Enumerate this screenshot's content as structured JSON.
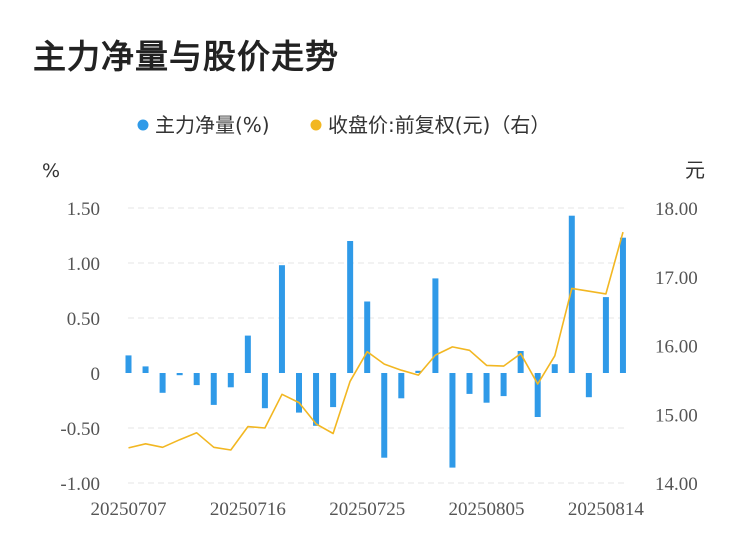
{
  "title": "主力净量与股价走势",
  "colors": {
    "bar": "#2f9ae8",
    "line": "#f2b722",
    "text": "#333333",
    "tick": "#555555",
    "grid": "#e6e6e6"
  },
  "chart_data": {
    "type": "bar+line",
    "legend": [
      {
        "name": "主力净量(%)",
        "icon": "dot",
        "color": "#2f9ae8"
      },
      {
        "name": "收盘价:前复权(元)（右）",
        "icon": "dot",
        "color": "#f2b722"
      }
    ],
    "left_axis": {
      "unit": "%",
      "ticks": [
        "1.50",
        "1.00",
        "0.50",
        "0",
        "-0.50",
        "-1.00"
      ],
      "range": [
        -1.0,
        1.5
      ]
    },
    "right_axis": {
      "unit": "元",
      "ticks": [
        "18.00",
        "17.00",
        "16.00",
        "15.00",
        "14.00"
      ],
      "range": [
        14.0,
        18.0
      ]
    },
    "x_tick_labels": [
      "20250707",
      "20250716",
      "20250725",
      "20250805",
      "20250814"
    ],
    "x_tick_indices": [
      0,
      7,
      14,
      21,
      28
    ],
    "series": [
      {
        "name": "主力净量(%)",
        "kind": "bar",
        "values": [
          0.16,
          0.06,
          -0.18,
          -0.02,
          -0.11,
          -0.29,
          -0.13,
          0.34,
          -0.32,
          0.98,
          -0.36,
          -0.48,
          -0.31,
          1.2,
          0.65,
          -0.77,
          -0.23,
          0.02,
          0.86,
          -0.86,
          -0.19,
          -0.27,
          -0.21,
          0.2,
          -0.4,
          0.08,
          1.43,
          -0.22,
          0.69,
          1.23
        ]
      },
      {
        "name": "收盘价:前复权(元)",
        "kind": "line",
        "axis": "right",
        "values": [
          14.51,
          14.57,
          14.52,
          14.63,
          14.73,
          14.52,
          14.48,
          14.82,
          14.8,
          15.29,
          15.17,
          14.86,
          14.72,
          15.48,
          15.91,
          15.73,
          15.64,
          15.57,
          15.86,
          15.98,
          15.93,
          15.71,
          15.7,
          15.88,
          15.44,
          15.85,
          16.83,
          16.79,
          16.75,
          17.65
        ]
      }
    ]
  }
}
